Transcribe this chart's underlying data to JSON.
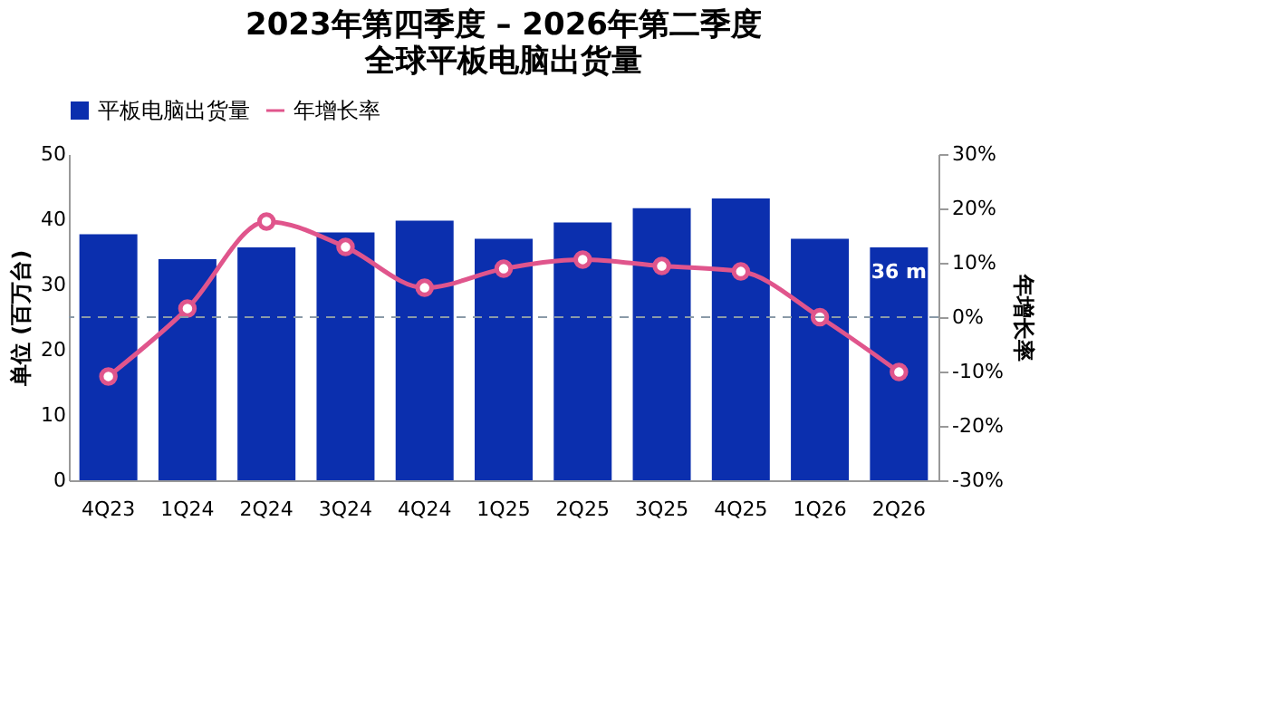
{
  "chart_data": {
    "type": "bar",
    "title": "2023年第四季度 – 2026年第二季度",
    "subtitle": "全球平板电脑出货量",
    "ylabel": "单位 (百万台)",
    "y2label": "年增长率",
    "categories": [
      "4Q23",
      "1Q24",
      "2Q24",
      "3Q24",
      "4Q24",
      "1Q25",
      "2Q25",
      "3Q25",
      "4Q25",
      "1Q26",
      "2Q26"
    ],
    "series": [
      {
        "name": "平板电脑出货量",
        "color": "#0b2fae",
        "values": [
          37.7,
          33.9,
          35.7,
          38.0,
          39.8,
          37.0,
          39.5,
          41.7,
          43.2,
          37.0,
          35.7
        ],
        "value_labels": [
          null,
          null,
          null,
          null,
          null,
          null,
          null,
          null,
          null,
          null,
          "36 m"
        ]
      },
      {
        "name": "年增长率",
        "type": "line",
        "axis": "y2",
        "color": "#e0558c",
        "marker": "circle",
        "values": [
          -10.9,
          1.6,
          17.6,
          12.9,
          5.4,
          8.9,
          10.6,
          9.4,
          8.4,
          0,
          -10.1
        ]
      }
    ],
    "ylim": [
      0,
      50
    ],
    "yticks": [
      0,
      10,
      20,
      30,
      40,
      50
    ],
    "y2lim": [
      -30,
      30
    ],
    "y2ticks": [
      {
        "value": -30,
        "label": "-30%"
      },
      {
        "value": -20,
        "label": "-20%"
      },
      {
        "value": -10,
        "label": "-10%"
      },
      {
        "value": 0,
        "label": "0%"
      },
      {
        "value": 10,
        "label": "10%"
      },
      {
        "value": 20,
        "label": "20%"
      },
      {
        "value": 30,
        "label": "30%"
      }
    ],
    "ref_lines": [
      {
        "axis": "y2",
        "value": 0,
        "color": "#8a9aa8",
        "line_style": "dashed"
      }
    ],
    "grid": false,
    "legend": "top"
  }
}
